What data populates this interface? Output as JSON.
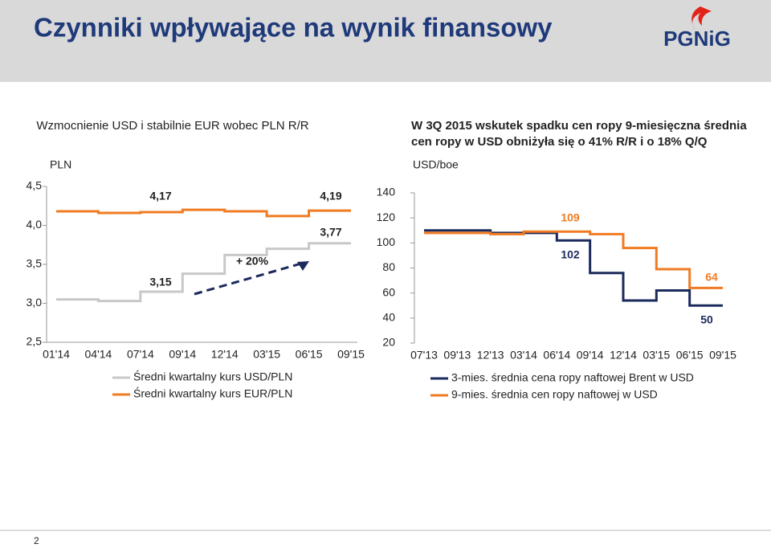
{
  "header": {
    "title": "Czynniki wpływające na wynik finansowy",
    "logo": "PGNiG"
  },
  "page_number": "2",
  "chart_data": [
    {
      "type": "step",
      "title": "Wzmocnienie USD i stabilnie EUR wobec PLN R/R",
      "y_label": "PLN",
      "x_boundaries": [
        "01'14",
        "04'14",
        "07'14",
        "09'14",
        "12'14",
        "03'15",
        "06'15",
        "09'15"
      ],
      "series": [
        {
          "name": "Średni kwartalny kurs USD/PLN",
          "color": "#c8c8c8",
          "values": [
            3.05,
            3.03,
            3.15,
            3.38,
            3.62,
            3.7,
            3.77
          ]
        },
        {
          "name": "Średni kwartalny kurs EUR/PLN",
          "color": "#f07b22",
          "values": [
            4.18,
            4.16,
            4.17,
            4.2,
            4.18,
            4.12,
            4.19
          ]
        }
      ],
      "ylim": [
        2.5,
        4.5
      ],
      "yticks": [
        {
          "value": 2.5,
          "label": "2,5"
        },
        {
          "value": 3,
          "label": "3,0"
        },
        {
          "value": 3.5,
          "label": "3,5"
        },
        {
          "value": 4,
          "label": "4,0"
        },
        {
          "value": 4.5,
          "label": "4,5"
        }
      ],
      "annotations": [
        "4,17",
        "4,19",
        "3,15",
        "3,77",
        "+ 20%"
      ]
    },
    {
      "type": "step",
      "title": "W 3Q 2015 wskutek spadku cen ropy 9-miesięczna średnia cen ropy w USD obniżyła się o 41% R/R i o 18% Q/Q",
      "y_label": "USD/boe",
      "x_boundaries": [
        "07'13",
        "09'13",
        "12'13",
        "03'14",
        "06'14",
        "09'14",
        "12'14",
        "03'15",
        "06'15",
        "09'15"
      ],
      "series": [
        {
          "name": "3-mies. średnia cena ropy naftowej Brent w USD",
          "color": "#1b2a5c",
          "values": [
            110,
            110,
            108,
            108,
            102,
            76,
            54,
            62,
            50
          ]
        },
        {
          "name": "9-mies. średnia cen ropy naftowej w USD",
          "color": "#f07b22",
          "values": [
            108,
            108,
            107,
            109,
            109,
            107,
            96,
            79,
            64
          ]
        }
      ],
      "ylim": [
        20,
        140
      ],
      "yticks": [
        20,
        40,
        60,
        80,
        100,
        120,
        140
      ],
      "annotations": [
        "109",
        "102",
        "64",
        "50"
      ]
    }
  ]
}
